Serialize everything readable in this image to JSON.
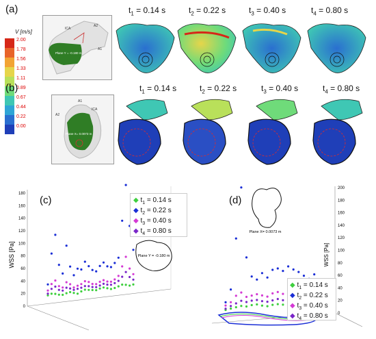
{
  "panels": {
    "a": "(a)",
    "b": "(b)",
    "c": "(c)",
    "d": "(d)"
  },
  "colorbar": {
    "title": "V [m/s]",
    "ticks": [
      "2.00",
      "1.78",
      "1.56",
      "1.33",
      "1.11",
      "0.89",
      "0.67",
      "0.44",
      "0.22",
      "0.00"
    ],
    "colors": [
      "#d62718",
      "#e8642a",
      "#f2a434",
      "#e6d54a",
      "#b9e05a",
      "#6fdb7a",
      "#3fc7b4",
      "#2fa5d6",
      "#2a6fd0",
      "#1f3fb8"
    ]
  },
  "times": [
    {
      "sub": "1",
      "value": "= 0.14 s"
    },
    {
      "sub": "2",
      "value": "= 0.22 s"
    },
    {
      "sub": "3",
      "value": "= 0.40 s"
    },
    {
      "sub": "4",
      "value": "= 0.80 s"
    }
  ],
  "thumb_a": {
    "ica": "ICA",
    "a2": "A2",
    "a1": "A1",
    "plane": "Plane Y = -0.180 m"
  },
  "thumb_b": {
    "a1": "A1",
    "a2": "A2",
    "ica": "ICA",
    "plane": "Plane X= 0.0073 m"
  },
  "chart_c": {
    "ylabel": "WSS [Pa]",
    "ticks": [
      "0",
      "20",
      "40",
      "60",
      "80",
      "100",
      "120",
      "140",
      "160",
      "180"
    ],
    "plane": "Plane Y = -0.180 m"
  },
  "chart_d": {
    "ylabel": "WSS [Pa]",
    "ticks": [
      "0",
      "20",
      "40",
      "60",
      "80",
      "100",
      "120",
      "140",
      "160",
      "180",
      "200"
    ],
    "plane": "Plane X= 0.0073 m"
  },
  "legend": [
    {
      "sub": "1",
      "text": " = 0.14 s",
      "color": "#3ecf3e"
    },
    {
      "sub": "2",
      "text": " = 0.22 s",
      "color": "#1a2ed6"
    },
    {
      "sub": "3",
      "text": " = 0.40 s",
      "color": "#d43ad4"
    },
    {
      "sub": "4",
      "text": " = 0.80 s",
      "color": "#7a26c9"
    }
  ],
  "chart_data": [
    {
      "type": "scatter",
      "title": "",
      "ylabel": "WSS [Pa]",
      "ylim": [
        0,
        180
      ],
      "series": [
        {
          "name": "t1 = 0.14 s",
          "values": [
            12,
            14,
            13,
            11,
            10,
            12,
            13,
            11,
            9,
            12,
            14,
            13,
            12,
            11,
            13,
            14,
            12,
            10,
            11,
            13,
            15,
            14,
            12,
            13
          ]
        },
        {
          "name": "t2 = 0.22 s",
          "values": [
            30,
            80,
            110,
            60,
            45,
            90,
            55,
            40,
            50,
            48,
            60,
            52,
            45,
            42,
            50,
            55,
            48,
            46,
            52,
            60,
            120,
            178,
            110,
            70
          ]
        },
        {
          "name": "t3 = 0.40 s",
          "values": [
            20,
            30,
            35,
            25,
            22,
            30,
            26,
            20,
            22,
            24,
            28,
            26,
            22,
            21,
            24,
            26,
            23,
            22,
            25,
            30,
            45,
            60,
            40,
            30
          ]
        },
        {
          "name": "t4 = 0.80 s",
          "values": [
            15,
            22,
            25,
            19,
            17,
            21,
            19,
            16,
            17,
            18,
            20,
            19,
            17,
            16,
            18,
            20,
            18,
            17,
            19,
            22,
            28,
            35,
            26,
            21
          ]
        }
      ]
    },
    {
      "type": "scatter",
      "title": "",
      "ylabel": "WSS [Pa]",
      "ylim": [
        0,
        200
      ],
      "series": [
        {
          "name": "t1 = 0.14 s",
          "values": [
            8,
            10,
            12,
            14,
            13,
            15,
            16,
            14,
            13,
            15,
            16,
            15,
            14,
            13,
            12,
            11,
            10,
            12,
            13,
            14
          ]
        },
        {
          "name": "t2 = 0.22 s",
          "values": [
            20,
            40,
            120,
            200,
            90,
            60,
            55,
            65,
            58,
            70,
            72,
            68,
            75,
            70,
            66,
            60,
            55,
            62,
            50,
            45
          ]
        },
        {
          "name": "t3 = 0.40 s",
          "values": [
            15,
            20,
            30,
            35,
            28,
            30,
            32,
            30,
            28,
            33,
            35,
            32,
            30,
            29,
            27,
            26,
            24,
            25,
            22,
            20
          ]
        },
        {
          "name": "t4 = 0.80 s",
          "values": [
            10,
            14,
            18,
            22,
            20,
            22,
            23,
            21,
            20,
            22,
            24,
            22,
            21,
            20,
            19,
            18,
            17,
            18,
            16,
            15
          ]
        }
      ]
    }
  ]
}
